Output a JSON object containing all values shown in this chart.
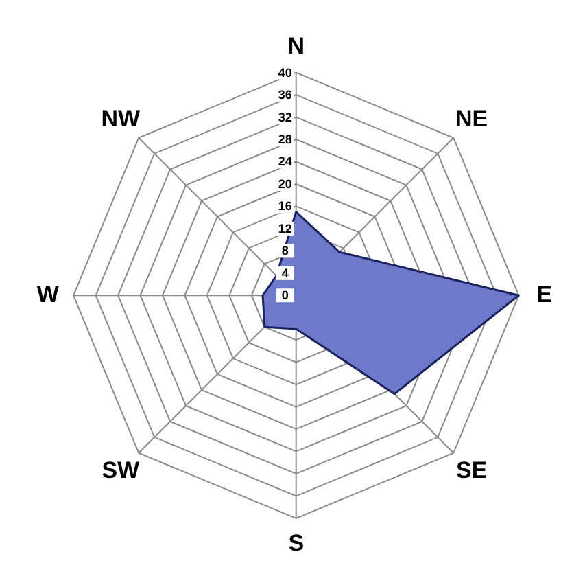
{
  "chart_data": {
    "type": "radar",
    "categories": [
      "N",
      "NE",
      "E",
      "SE",
      "S",
      "SW",
      "W",
      "NW"
    ],
    "series": [
      {
        "color": "#6f79c9",
        "values": [
          15,
          11,
          40,
          25,
          6,
          8,
          6,
          5
        ]
      }
    ],
    "ylim": [
      0,
      40
    ],
    "yticks": [
      0,
      4,
      8,
      12,
      16,
      20,
      24,
      28,
      32,
      36,
      40
    ],
    "grid": true
  }
}
